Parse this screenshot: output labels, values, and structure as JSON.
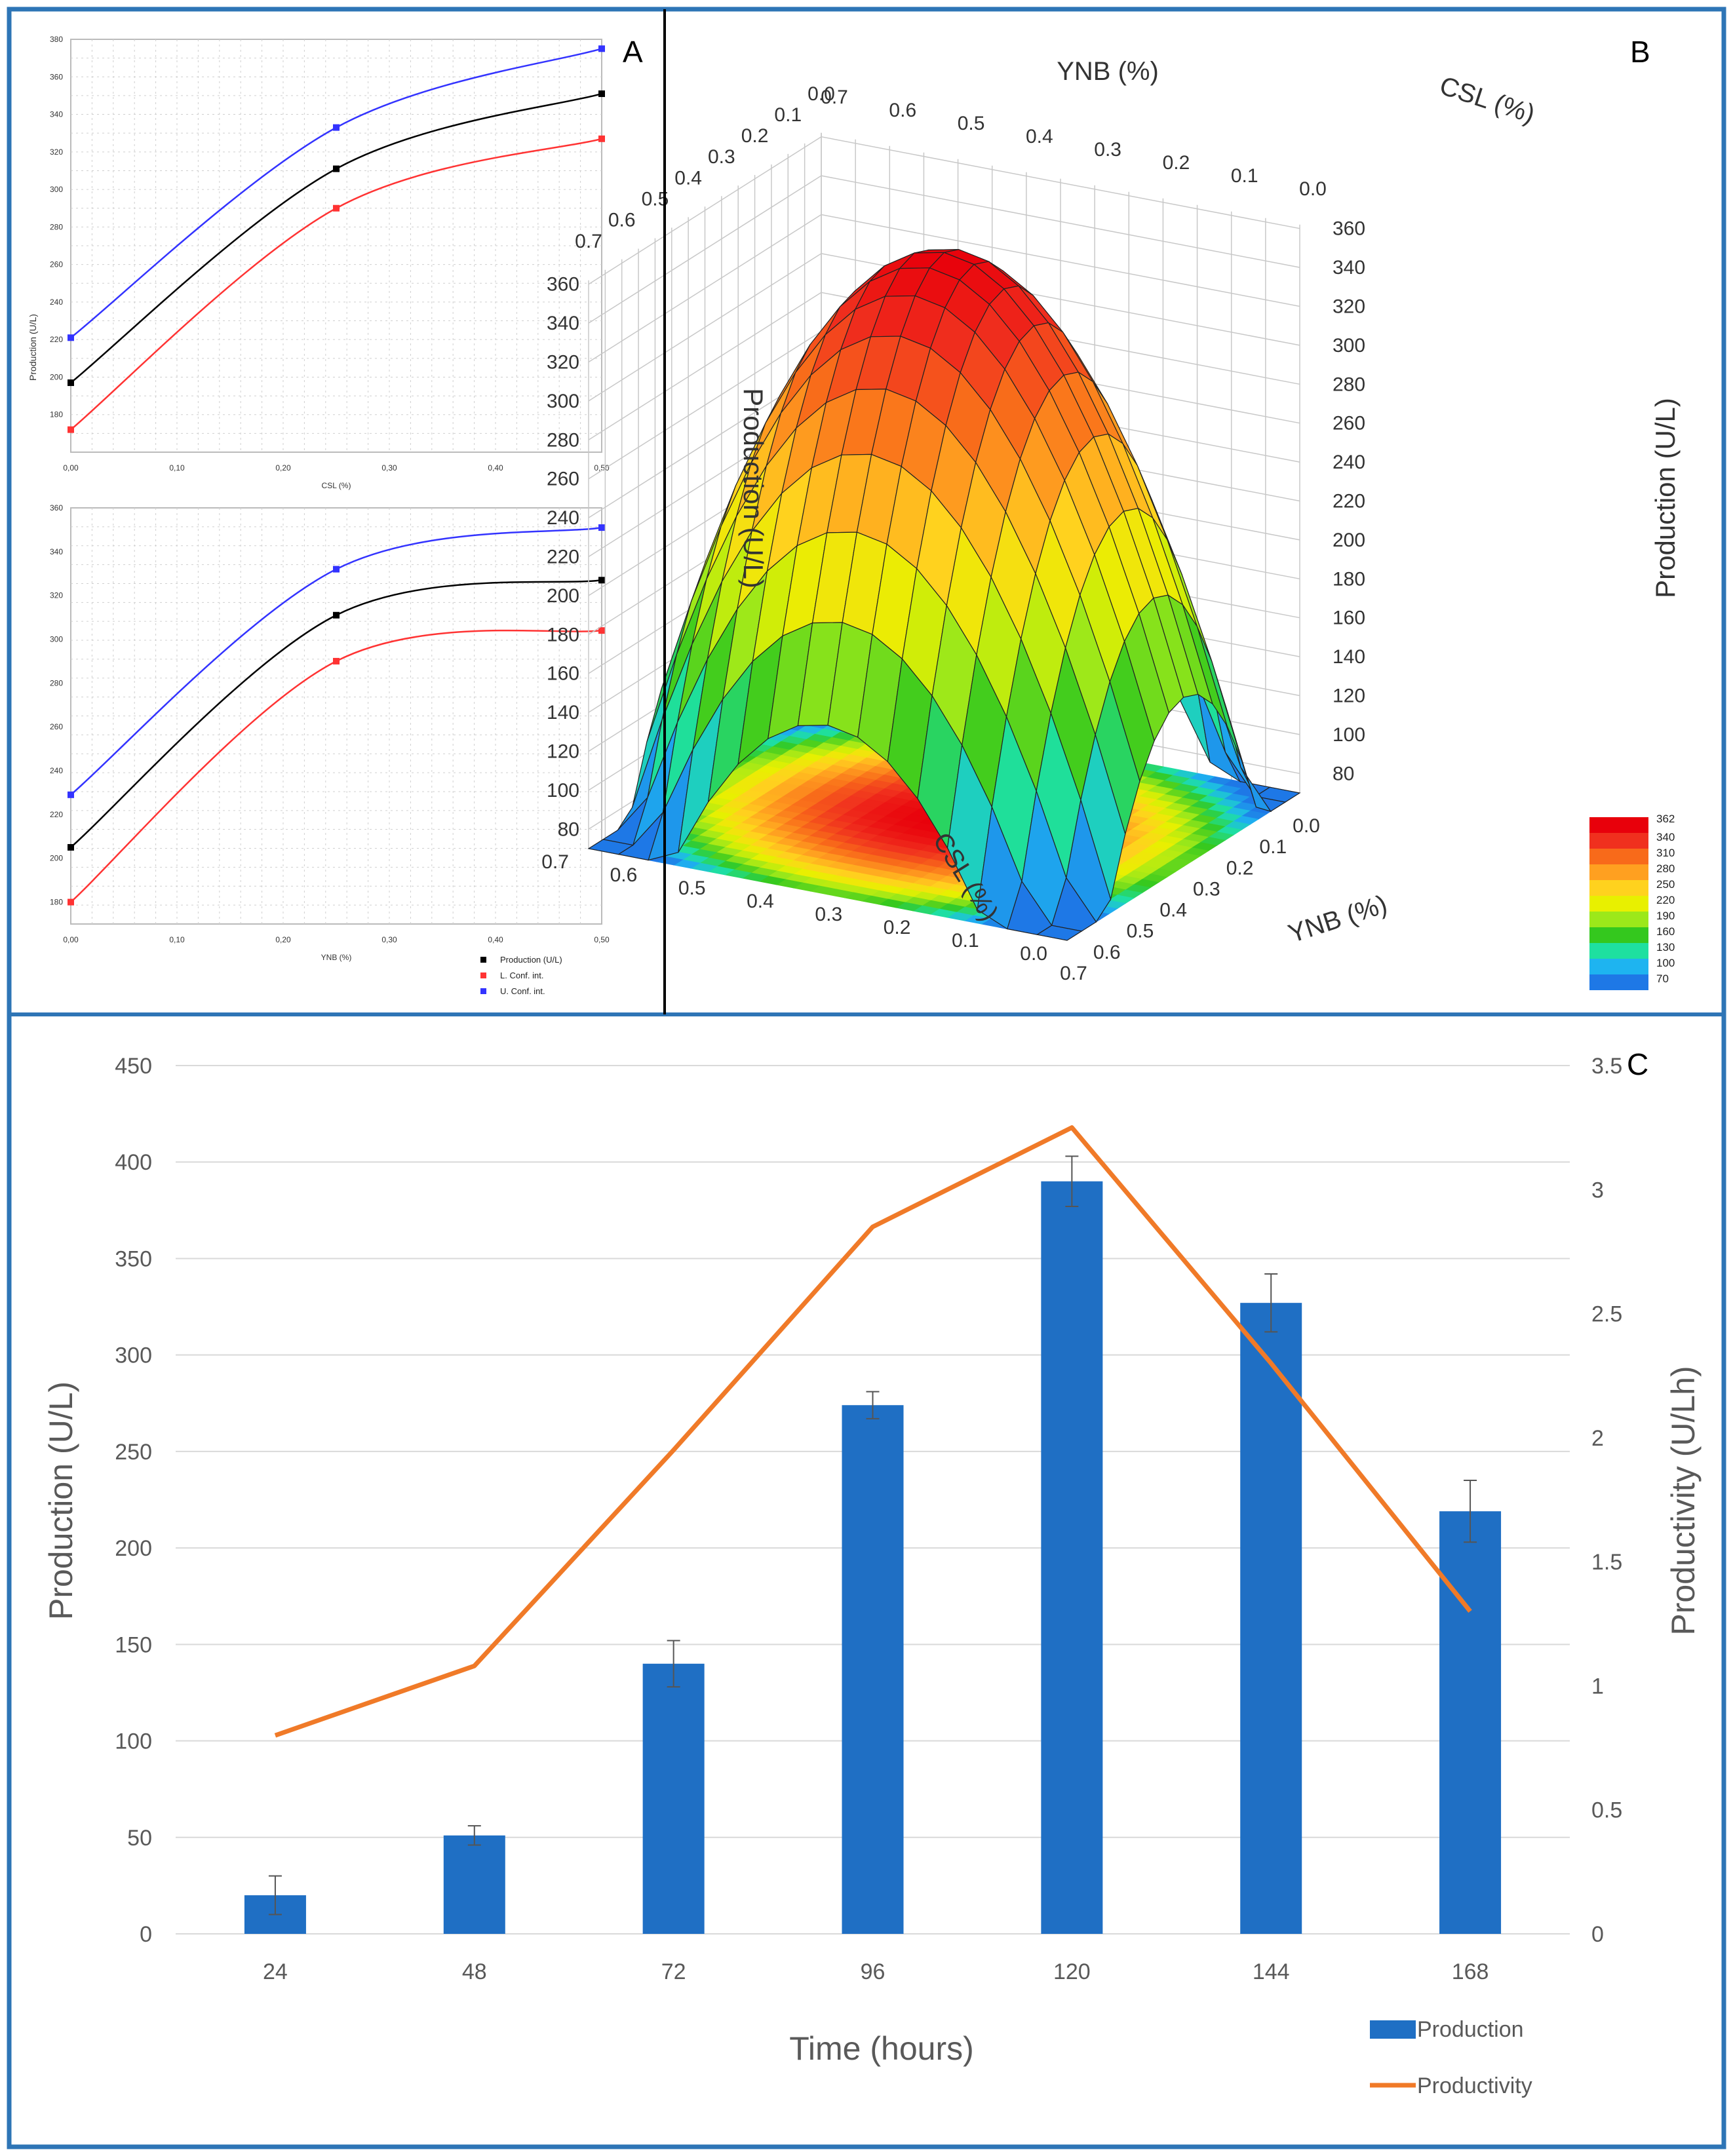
{
  "figure": {
    "border_color": "#2E75B6",
    "panel_labels": [
      "A",
      "B",
      "C"
    ]
  },
  "colors": {
    "production": "#000000",
    "lower": "#FF3333",
    "upper": "#3333FF",
    "bar": "#1F6FC4",
    "line": "#F07A28",
    "axis_text": "#595959",
    "grid": "#D9D9D9"
  },
  "chart_data": [
    {
      "panel": "A",
      "type": "line",
      "xlabel": "CSL (%)",
      "ylabel": "Production (U/L)",
      "xlim": [
        0,
        0.5
      ],
      "ylim": [
        160,
        380
      ],
      "xticks": [
        "0,00",
        "0,10",
        "0,20",
        "0,30",
        "0,40",
        "0,50"
      ],
      "yticks": [
        "180",
        "200",
        "220",
        "240",
        "260",
        "280",
        "300",
        "320",
        "340",
        "360",
        "380"
      ],
      "x": [
        0,
        0.25,
        0.5
      ],
      "series": [
        {
          "name": "Production (U/L)",
          "color": "#000000",
          "marker": "square",
          "values": [
            197,
            311,
            351
          ]
        },
        {
          "name": "L. Conf. int.",
          "color": "#FF3333",
          "marker": "triangle",
          "values": [
            172,
            290,
            327
          ]
        },
        {
          "name": "U. Conf. int.",
          "color": "#3333FF",
          "marker": "diamond",
          "values": [
            221,
            333,
            375
          ]
        }
      ]
    },
    {
      "panel": "A",
      "type": "line",
      "xlabel": "YNB (%)",
      "ylabel": "",
      "xlim": [
        0,
        0.5
      ],
      "ylim": [
        170,
        360
      ],
      "xticks": [
        "0,00",
        "0,10",
        "0,20",
        "0,30",
        "0,40",
        "0,50"
      ],
      "yticks": [
        "180",
        "200",
        "220",
        "240",
        "260",
        "280",
        "300",
        "320",
        "340",
        "360"
      ],
      "x": [
        0,
        0.25,
        0.5
      ],
      "series": [
        {
          "name": "Production (U/L)",
          "color": "#000000",
          "marker": "square",
          "values": [
            205,
            311,
            327
          ]
        },
        {
          "name": "L. Conf. int.",
          "color": "#FF3333",
          "marker": "triangle",
          "values": [
            180,
            290,
            304
          ]
        },
        {
          "name": "U. Conf. int.",
          "color": "#3333FF",
          "marker": "diamond",
          "values": [
            229,
            332,
            351
          ]
        }
      ],
      "legend": [
        "Production (U/L)",
        "L. Conf. int.",
        "U. Conf. int."
      ]
    },
    {
      "panel": "B",
      "type": "surface",
      "x_label": "YNB (%)",
      "y_label": "CSL (%)",
      "z_label": "Production (U/L)",
      "x_ticks": [
        "0.7",
        "0.6",
        "0.5",
        "0.4",
        "0.3",
        "0.2",
        "0.1",
        "0.0"
      ],
      "y_ticks": [
        "0.7",
        "0.6",
        "0.5",
        "0.4",
        "0.3",
        "0.2",
        "0.1",
        "0.0"
      ],
      "z_ticks": [
        "80",
        "100",
        "120",
        "140",
        "160",
        "180",
        "200",
        "220",
        "240",
        "260",
        "280",
        "300",
        "320",
        "340",
        "360"
      ],
      "zlim": [
        70,
        362
      ],
      "colorbar_levels": [
        "362",
        "340",
        "310",
        "280",
        "250",
        "220",
        "190",
        "160",
        "130",
        "100",
        "70"
      ],
      "colorbar_colors": [
        "#E8000B",
        "#F0301E",
        "#F86A1A",
        "#FFA020",
        "#FFD21E",
        "#E8F000",
        "#9CE81A",
        "#34C81E",
        "#1EE0A0",
        "#1EB4F0",
        "#1E78E6"
      ]
    },
    {
      "panel": "C",
      "type": "bar",
      "title": "",
      "xlabel": "Time (hours)",
      "ylabel": "Production (U/L)",
      "y2label": "Productivity (U/Lh)",
      "categories": [
        "24",
        "48",
        "72",
        "96",
        "120",
        "144",
        "168"
      ],
      "ylim": [
        0,
        450
      ],
      "y2lim": [
        0,
        3.5
      ],
      "yticks": [
        "0",
        "50",
        "100",
        "150",
        "200",
        "250",
        "300",
        "350",
        "400",
        "450"
      ],
      "y2ticks": [
        "0",
        "0.5",
        "1",
        "1.5",
        "2",
        "2.5",
        "3",
        "3.5"
      ],
      "series": [
        {
          "name": "Production",
          "type": "bar",
          "color": "#1F6FC4",
          "values": [
            20,
            51,
            140,
            274,
            390,
            327,
            219
          ],
          "errors": [
            10,
            5,
            12,
            7,
            13,
            15,
            16
          ]
        },
        {
          "name": "Productivity",
          "type": "line",
          "color": "#F07A28",
          "values": [
            0.8,
            1.08,
            1.95,
            2.85,
            3.25,
            2.3,
            1.3
          ]
        }
      ],
      "legend": [
        "Production",
        "Productivity"
      ]
    }
  ]
}
